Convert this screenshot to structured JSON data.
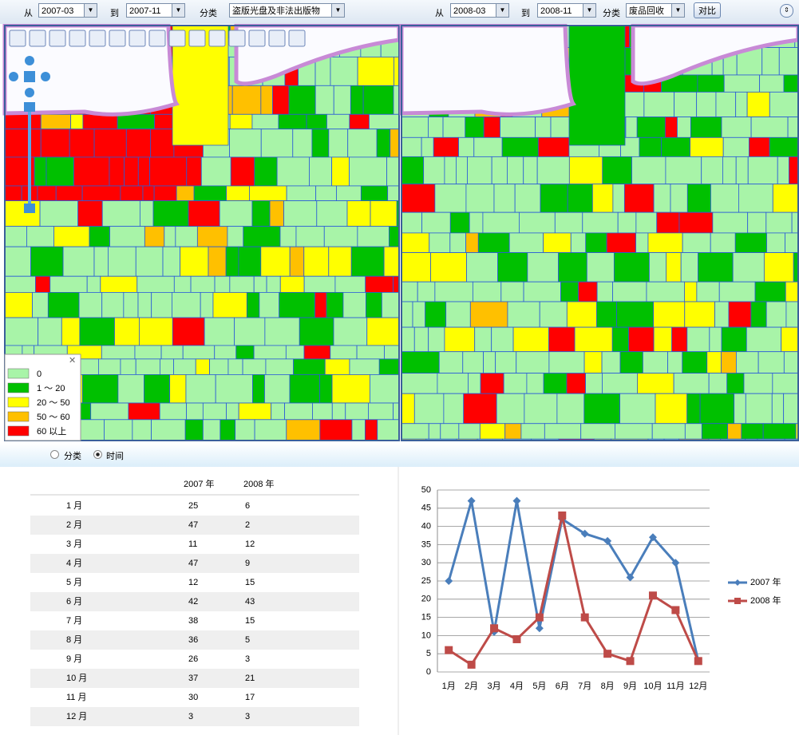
{
  "toolbar": {
    "left": {
      "from_label": "从",
      "from": "2007-03",
      "to_label": "到",
      "to": "2007-11",
      "category_label": "分类",
      "category": "盗版光盘及非法出版物"
    },
    "right": {
      "from_label": "从",
      "from": "2008-03",
      "to_label": "到",
      "to": "2008-11",
      "category_label": "分类",
      "category": "废品回收"
    },
    "compare_button": "对比"
  },
  "legend": {
    "items": [
      {
        "label": "0",
        "color": "#a8f4a8"
      },
      {
        "label": "1 ～ 20",
        "color": "#00c000"
      },
      {
        "label": "20 ～ 50",
        "color": "#ffff00"
      },
      {
        "label": "50 ～ 60",
        "color": "#ffc000"
      },
      {
        "label": "60 以上",
        "color": "#ff0000"
      }
    ]
  },
  "view_options": [
    "分类",
    "时间"
  ],
  "table": {
    "months": [
      "1 月",
      "2 月",
      "3 月",
      "4 月",
      "5 月",
      "6 月",
      "7 月",
      "8 月",
      "9 月",
      "10 月",
      "11 月",
      "12 月"
    ]
  },
  "chart_data": {
    "type": "line",
    "categories": [
      "1月",
      "2月",
      "3月",
      "4月",
      "5月",
      "6月",
      "7月",
      "8月",
      "9月",
      "10月",
      "11月",
      "12月"
    ],
    "series": [
      {
        "name": "2007 年",
        "color": "#4a7ebb",
        "values": [
          25,
          47,
          11,
          47,
          12,
          42,
          38,
          36,
          26,
          37,
          30,
          3
        ]
      },
      {
        "name": "2008 年",
        "color": "#be4b48",
        "values": [
          6,
          2,
          12,
          9,
          15,
          43,
          15,
          5,
          3,
          21,
          17,
          3
        ]
      }
    ],
    "ylim": [
      0,
      50
    ],
    "yticks": [
      0,
      5,
      10,
      15,
      20,
      25,
      30,
      35,
      40,
      45,
      50
    ],
    "grid": true,
    "legend": "right"
  }
}
